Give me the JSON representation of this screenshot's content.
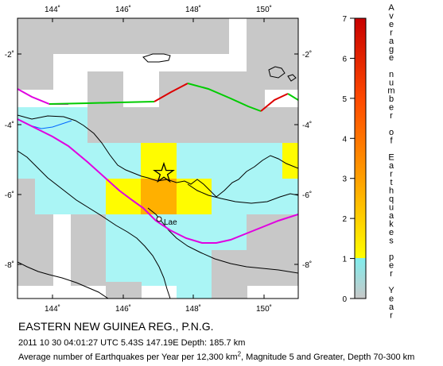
{
  "map": {
    "lon_ticks": [
      "144˚",
      "146˚",
      "148˚",
      "150˚"
    ],
    "lat_ticks": [
      "-2˚",
      "-4˚",
      "-6˚",
      "-8˚"
    ],
    "city_label": "Lae",
    "colors": {
      "land_outline": "#000000",
      "plate_boundary_green": "#00cc00",
      "plate_boundary_red": "#dd0000",
      "trench_magenta": "#e000e0",
      "river_blue": "#0066ff",
      "no_data_grey": "#cccccc",
      "low_cyan": "#aaf5f5"
    },
    "epicenter_marker": "star-icon"
  },
  "colorbar": {
    "tick_labels": [
      "0",
      "1",
      "2",
      "3",
      "4",
      "5",
      "6",
      "7"
    ],
    "title_chars": [
      "A",
      "v",
      "e",
      "r",
      "a",
      "g",
      "e",
      "",
      "n",
      "u",
      "m",
      "b",
      "e",
      "r",
      "",
      "o",
      "f",
      "",
      "E",
      "a",
      "r",
      "t",
      "h",
      "q",
      "u",
      "a",
      "k",
      "e",
      "s",
      "",
      "p",
      "e",
      "r",
      "",
      "Y",
      "e",
      "a",
      "r"
    ]
  },
  "caption": {
    "region": "EASTERN NEW GUINEA REG., P.N.G.",
    "event": "2011 10 30 04:01:27 UTC 5.43S 147.19E Depth: 185.7 km",
    "desc_a": "Average number of Earthquakes per Year per 12,300 km",
    "desc_sup": "2",
    "desc_b": ", Magnitude 5 and Greater, Depth 70-300 km"
  }
}
